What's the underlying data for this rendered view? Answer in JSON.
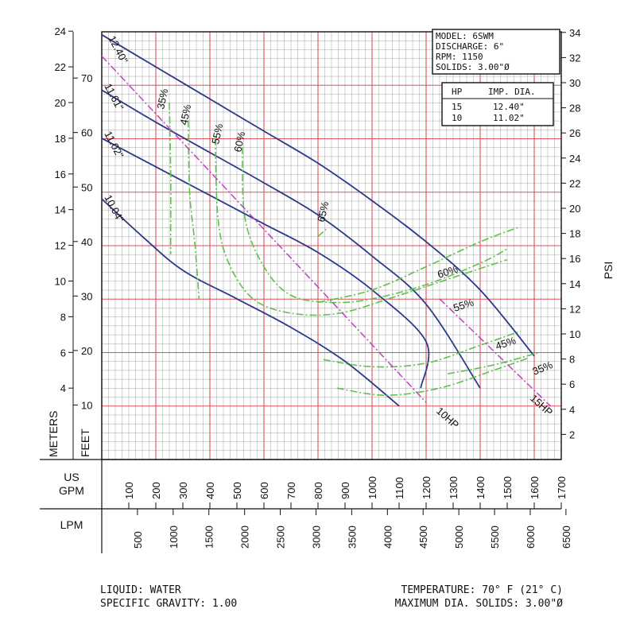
{
  "chart_data": {
    "type": "line",
    "x_axis_gpm": {
      "label": "US GPM",
      "range": [
        0,
        1700
      ],
      "ticks": [
        100,
        200,
        300,
        400,
        500,
        600,
        700,
        800,
        900,
        1000,
        1100,
        1200,
        1300,
        1400,
        1500,
        1600,
        1700
      ]
    },
    "x_axis_lpm": {
      "label": "LPM",
      "ticks": [
        500,
        1000,
        1500,
        2000,
        2500,
        3000,
        3500,
        4000,
        4500,
        5000,
        5500,
        6000,
        6500
      ]
    },
    "y_axis_meters": {
      "label": "METERS",
      "range": [
        0,
        24
      ],
      "ticks": [
        4,
        6,
        8,
        10,
        12,
        14,
        16,
        18,
        20,
        22,
        24
      ]
    },
    "y_axis_feet": {
      "label": "FEET",
      "ticks": [
        10,
        20,
        30,
        40,
        50,
        60,
        70
      ]
    },
    "y_axis_psi": {
      "label": "PSI",
      "ticks": [
        2,
        4,
        6,
        8,
        10,
        12,
        14,
        16,
        18,
        20,
        22,
        24,
        26,
        28,
        30,
        32,
        34
      ]
    },
    "impeller_curves": [
      {
        "name": "12.40\"",
        "points": [
          [
            0,
            23.8
          ],
          [
            200,
            22.0
          ],
          [
            400,
            20.2
          ],
          [
            600,
            18.4
          ],
          [
            800,
            16.6
          ],
          [
            1000,
            14.5
          ],
          [
            1200,
            12.2
          ],
          [
            1400,
            9.5
          ],
          [
            1600,
            5.8
          ]
        ]
      },
      {
        "name": "11.61\"",
        "points": [
          [
            0,
            20.7
          ],
          [
            200,
            18.9
          ],
          [
            400,
            17.2
          ],
          [
            600,
            15.5
          ],
          [
            800,
            13.7
          ],
          [
            1000,
            11.4
          ],
          [
            1200,
            8.7
          ],
          [
            1400,
            4.0
          ]
        ]
      },
      {
        "name": "11.02\"",
        "points": [
          [
            0,
            18.0
          ],
          [
            200,
            16.4
          ],
          [
            400,
            14.8
          ],
          [
            600,
            13.2
          ],
          [
            800,
            11.6
          ],
          [
            1000,
            9.5
          ],
          [
            1200,
            6.6
          ],
          [
            1180,
            4.0
          ]
        ]
      },
      {
        "name": "10.04\"",
        "points": [
          [
            0,
            14.6
          ],
          [
            150,
            12.5
          ],
          [
            300,
            10.6
          ],
          [
            500,
            9.0
          ],
          [
            700,
            7.4
          ],
          [
            900,
            5.5
          ],
          [
            1100,
            3.0
          ]
        ]
      }
    ],
    "efficiency_curves": [
      {
        "name": "35%",
        "points": [
          [
            250,
            20.0
          ],
          [
            255,
            16.0
          ],
          [
            255,
            13.2
          ],
          [
            255,
            11.5
          ]
        ]
      },
      {
        "name": "45%",
        "points": [
          [
            320,
            19.0
          ],
          [
            325,
            15.0
          ],
          [
            345,
            12.0
          ],
          [
            360,
            9.0
          ]
        ]
      },
      {
        "name": "55%",
        "points": [
          [
            420,
            18.0
          ],
          [
            430,
            13.5
          ],
          [
            470,
            11.0
          ],
          [
            560,
            9.0
          ],
          [
            700,
            8.2
          ],
          [
            880,
            8.2
          ],
          [
            1100,
            9.2
          ],
          [
            1300,
            10.2
          ],
          [
            1500,
            11.2
          ]
        ]
      },
      {
        "name": "60%",
        "points": [
          [
            520,
            17.5
          ],
          [
            530,
            13.5
          ],
          [
            600,
            10.8
          ],
          [
            700,
            9.2
          ],
          [
            850,
            8.8
          ],
          [
            1000,
            9.0
          ],
          [
            1200,
            9.8
          ],
          [
            1400,
            11.0
          ],
          [
            1500,
            11.8
          ]
        ]
      },
      {
        "name": "65%",
        "points": [
          [
            800,
            12.5
          ],
          [
            830,
            12.9
          ]
        ]
      },
      {
        "name": "60%",
        "points": [
          [
            800,
            8.8
          ],
          [
            1000,
            9.5
          ],
          [
            1200,
            10.8
          ],
          [
            1400,
            12.2
          ],
          [
            1540,
            13.0
          ]
        ]
      },
      {
        "name": "55%",
        "points": [
          [
            820,
            5.6
          ],
          [
            1000,
            5.2
          ],
          [
            1200,
            5.4
          ],
          [
            1400,
            6.4
          ],
          [
            1550,
            7.2
          ]
        ]
      },
      {
        "name": "45%",
        "points": [
          [
            870,
            4.0
          ],
          [
            1050,
            3.6
          ],
          [
            1250,
            4.0
          ],
          [
            1450,
            5.0
          ],
          [
            1580,
            5.7
          ]
        ]
      },
      {
        "name": "35%",
        "points": [
          [
            1280,
            4.8
          ],
          [
            1450,
            5.3
          ],
          [
            1620,
            6.0
          ]
        ]
      }
    ],
    "hp_lines": [
      {
        "name": "10HP",
        "points": [
          [
            0,
            22.6
          ],
          [
            1200,
            3.2
          ]
        ]
      },
      {
        "name": "15HP",
        "points": [
          [
            1250,
            9.0
          ],
          [
            1660,
            3.0
          ]
        ]
      }
    ],
    "efficiency_labels": [
      "35%",
      "45%",
      "55%",
      "60%",
      "65%",
      "60%",
      "55%",
      "45%",
      "35%"
    ],
    "hp_labels": [
      "10HP",
      "15HP"
    ],
    "impeller_labels": [
      "12.40\"",
      "11.61\"",
      "11.02\"",
      "10.04\""
    ]
  },
  "info_box": {
    "model": "MODEL: 6SWM",
    "discharge": "DISCHARGE: 6\"",
    "rpm": "RPM: 1150",
    "solids": "SOLIDS: 3.00\"Ø"
  },
  "hp_table": {
    "headers": [
      "HP",
      "IMP. DIA."
    ],
    "rows": [
      [
        "15",
        "12.40\""
      ],
      [
        "10",
        "11.02\""
      ]
    ]
  },
  "footer": {
    "liquid": "LIQUID: WATER",
    "gravity": "SPECIFIC GRAVITY: 1.00",
    "temperature": "TEMPERATURE: 70° F (21° C)",
    "max_solids": "MAXIMUM DIA. SOLIDS: 3.00\"Ø"
  },
  "colors": {
    "grid_major": "#e0505a",
    "grid_minor": "#9a9a9a",
    "impeller": "#2a3a8a",
    "efficiency": "#5cc24a",
    "hp": "#c040c0"
  }
}
